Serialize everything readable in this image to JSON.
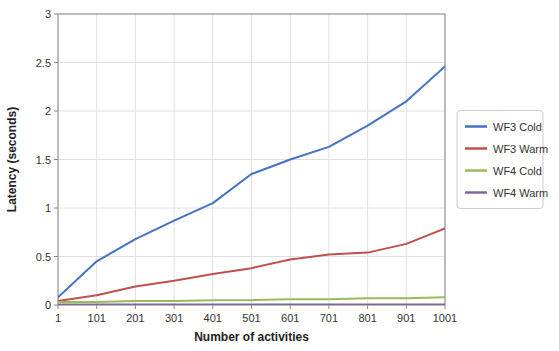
{
  "chart_data": {
    "type": "line",
    "x": [
      1,
      101,
      201,
      301,
      401,
      501,
      601,
      701,
      801,
      901,
      1001
    ],
    "xlabel": "Number of activities",
    "ylabel": "Latency (seconds)",
    "series": [
      {
        "name": "WF3 Cold",
        "color": "#4472C4",
        "values": [
          0.08,
          0.45,
          0.68,
          0.87,
          1.05,
          1.35,
          1.5,
          1.63,
          1.85,
          2.1,
          2.46
        ]
      },
      {
        "name": "WF3 Warm",
        "color": "#C0504D",
        "values": [
          0.04,
          0.1,
          0.19,
          0.25,
          0.32,
          0.38,
          0.47,
          0.52,
          0.54,
          0.63,
          0.79
        ]
      },
      {
        "name": "WF4 Cold",
        "color": "#9BBB59",
        "values": [
          0.03,
          0.03,
          0.04,
          0.04,
          0.05,
          0.05,
          0.06,
          0.06,
          0.07,
          0.07,
          0.08
        ]
      },
      {
        "name": "WF4 Warm",
        "color": "#8064A2",
        "values": [
          0.005,
          0.005,
          0.005,
          0.005,
          0.005,
          0.005,
          0.005,
          0.005,
          0.005,
          0.005,
          0.005
        ]
      }
    ],
    "xlim": [
      1,
      1001
    ],
    "xticks": [
      1,
      101,
      201,
      301,
      401,
      501,
      601,
      701,
      801,
      901,
      1001
    ],
    "ylim": [
      0,
      3
    ],
    "yticks": [
      0,
      0.5,
      1,
      1.5,
      2,
      2.5,
      3
    ],
    "grid": true,
    "legend": "right"
  }
}
